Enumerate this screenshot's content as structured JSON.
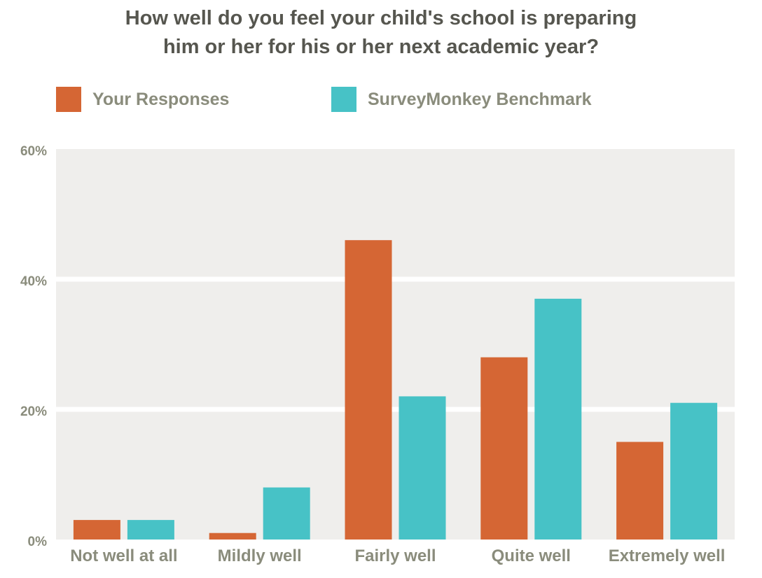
{
  "chart_data": {
    "type": "bar",
    "title_lines": [
      "How well do you feel your child's school is preparing",
      "him or her for his or her next academic year?"
    ],
    "categories": [
      "Not well at all",
      "Mildly well",
      "Fairly well",
      "Quite well",
      "Extremely well"
    ],
    "series": [
      {
        "name": "Your Responses",
        "color": "#d56634",
        "values": [
          3,
          1,
          46,
          28,
          15
        ]
      },
      {
        "name": "SurveyMonkey Benchmark",
        "color": "#47c2c6",
        "values": [
          3,
          8,
          22,
          37,
          21
        ]
      }
    ],
    "ylim": [
      0,
      60
    ],
    "yticks": [
      0,
      20,
      40,
      60
    ],
    "ytick_labels": [
      "0%",
      "20%",
      "40%",
      "60%"
    ],
    "grid": true,
    "legend_position": "top-left",
    "plot_background": "#efeeec"
  }
}
